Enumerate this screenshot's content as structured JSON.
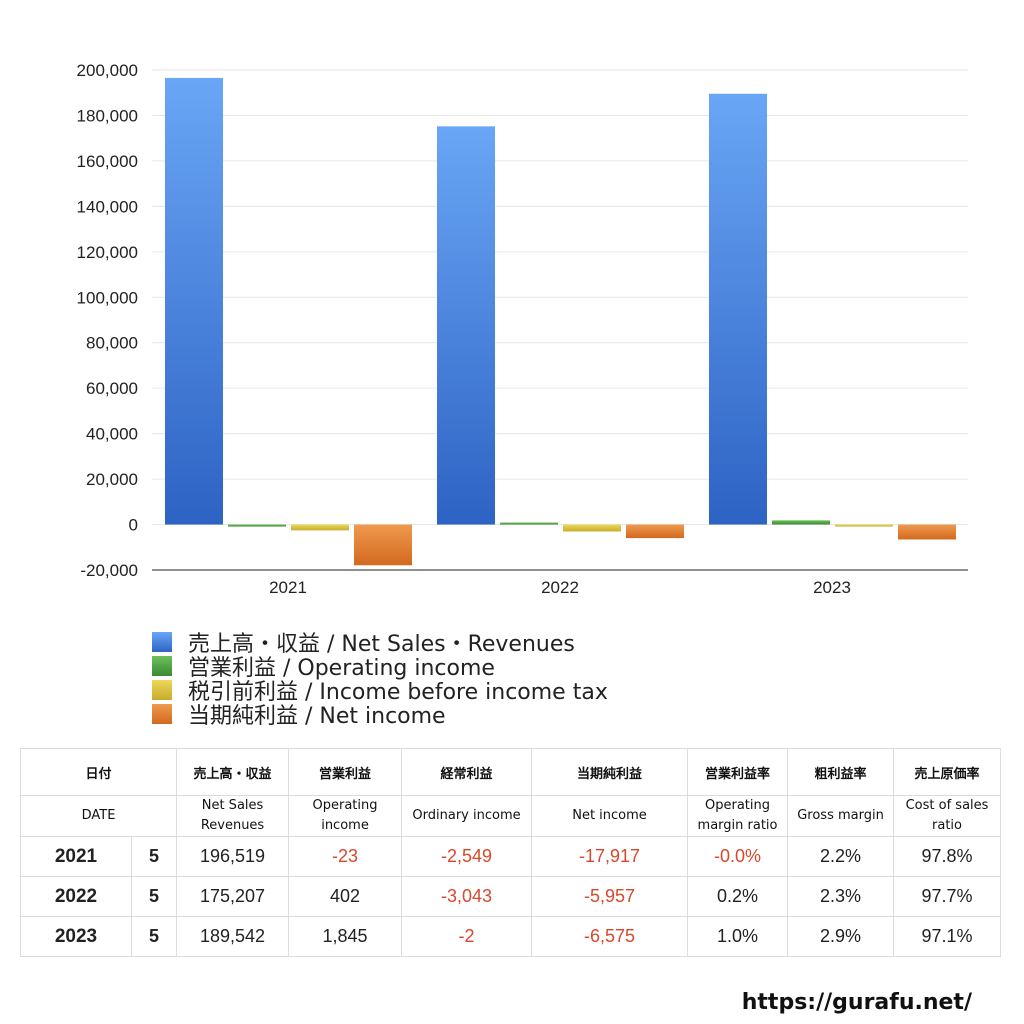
{
  "chart_data": {
    "type": "bar",
    "categories": [
      "2021",
      "2022",
      "2023"
    ],
    "series": [
      {
        "name": "売上高・収益 / Net Sales・Revenues",
        "values": [
          196519,
          175207,
          189542
        ],
        "color": "#3f7fe0"
      },
      {
        "name": "営業利益 / Operating income",
        "values": [
          -23,
          402,
          1845
        ],
        "color": "#5aa34a"
      },
      {
        "name": "税引前利益 / Income before income tax",
        "values": [
          -2549,
          -3043,
          -2
        ],
        "color": "#d6c23a"
      },
      {
        "name": "当期純利益 / Net income",
        "values": [
          -17917,
          -5957,
          -6575
        ],
        "color": "#e07a2e"
      }
    ],
    "ylim": [
      -20000,
      200000
    ],
    "yticks": [
      "200,000",
      "180,000",
      "160,000",
      "140,000",
      "120,000",
      "100,000",
      "80,000",
      "60,000",
      "40,000",
      "20,000",
      "0",
      "-20,000"
    ],
    "grid": true,
    "legend_position": "bottom-left"
  },
  "table": {
    "headers_ja": [
      "日付",
      "売上高・収益",
      "営業利益",
      "経常利益",
      "当期純利益",
      "営業利益率",
      "粗利益率",
      "売上原価率"
    ],
    "headers_en": [
      "DATE",
      "Net Sales Revenues",
      "Operating income",
      "Ordinary income",
      "Net income",
      "Operating margin ratio",
      "Gross margin",
      "Cost of sales ratio"
    ],
    "rows": [
      {
        "year": "2021",
        "month": "5",
        "sales": "196,519",
        "operating": "-23",
        "ordinary": "-2,549",
        "net": "-17,917",
        "op_margin": "-0.0%",
        "gross": "2.2%",
        "cost": "97.8%"
      },
      {
        "year": "2022",
        "month": "5",
        "sales": "175,207",
        "operating": "402",
        "ordinary": "-3,043",
        "net": "-5,957",
        "op_margin": "0.2%",
        "gross": "2.3%",
        "cost": "97.7%"
      },
      {
        "year": "2023",
        "month": "5",
        "sales": "189,542",
        "operating": "1,845",
        "ordinary": "-2",
        "net": "-6,575",
        "op_margin": "1.0%",
        "gross": "2.9%",
        "cost": "97.1%"
      }
    ]
  },
  "footer": {
    "url": "https://gurafu.net/"
  }
}
